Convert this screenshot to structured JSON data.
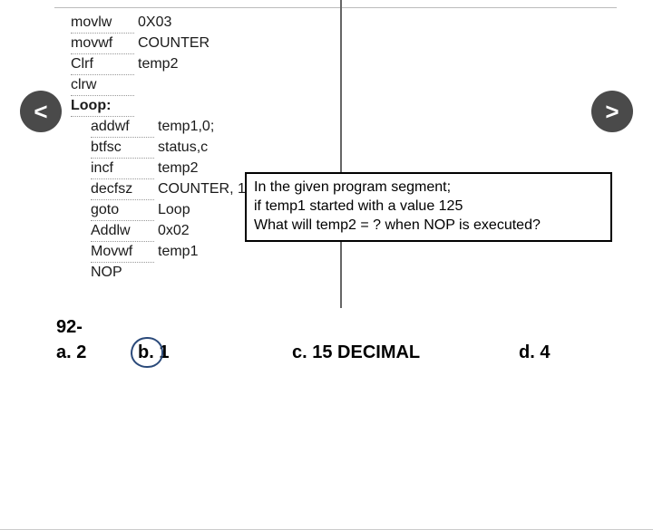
{
  "nav": {
    "prev": "<",
    "next": ">"
  },
  "code": {
    "rows": [
      {
        "c1": "movlw",
        "c2": "0X03",
        "indent": false,
        "underline": true
      },
      {
        "c1": "movwf",
        "c2": "COUNTER",
        "indent": false,
        "underline": true
      },
      {
        "c1": "Clrf",
        "c2": "temp2",
        "indent": false,
        "underline": true
      },
      {
        "c1": "clrw",
        "c2": "",
        "indent": false,
        "underline": true
      },
      {
        "c1": "Loop:",
        "c2": "",
        "indent": false,
        "underline": true,
        "label": true
      },
      {
        "c1": "addwf",
        "c2": "temp1,0;",
        "indent": true,
        "underline": true
      },
      {
        "c1": "btfsc",
        "c2": "status,c",
        "indent": true,
        "underline": true
      },
      {
        "c1": "incf",
        "c2": "temp2",
        "indent": true,
        "underline": true
      },
      {
        "c1": "decfsz",
        "c2": "COUNTER, 1",
        "indent": true,
        "underline": true
      },
      {
        "c1": "goto",
        "c2": "Loop",
        "indent": true,
        "underline": true
      },
      {
        "c1": "Addlw",
        "c2": "0x02",
        "indent": true,
        "underline": true
      },
      {
        "c1": "Movwf",
        "c2": "temp1",
        "indent": true,
        "underline": true
      },
      {
        "c1": "NOP",
        "c2": "",
        "indent": true,
        "underline": false
      }
    ]
  },
  "question": {
    "line1": "In the given program segment;",
    "line2": "if temp1 started with a value 125",
    "line3": "What will temp2 = ? when NOP is executed?"
  },
  "qnum": "92-",
  "choices": {
    "a": "a. 2",
    "b": "b. 1",
    "c": "c. 15 DECIMAL",
    "d": "d. 4"
  },
  "selected": "b"
}
